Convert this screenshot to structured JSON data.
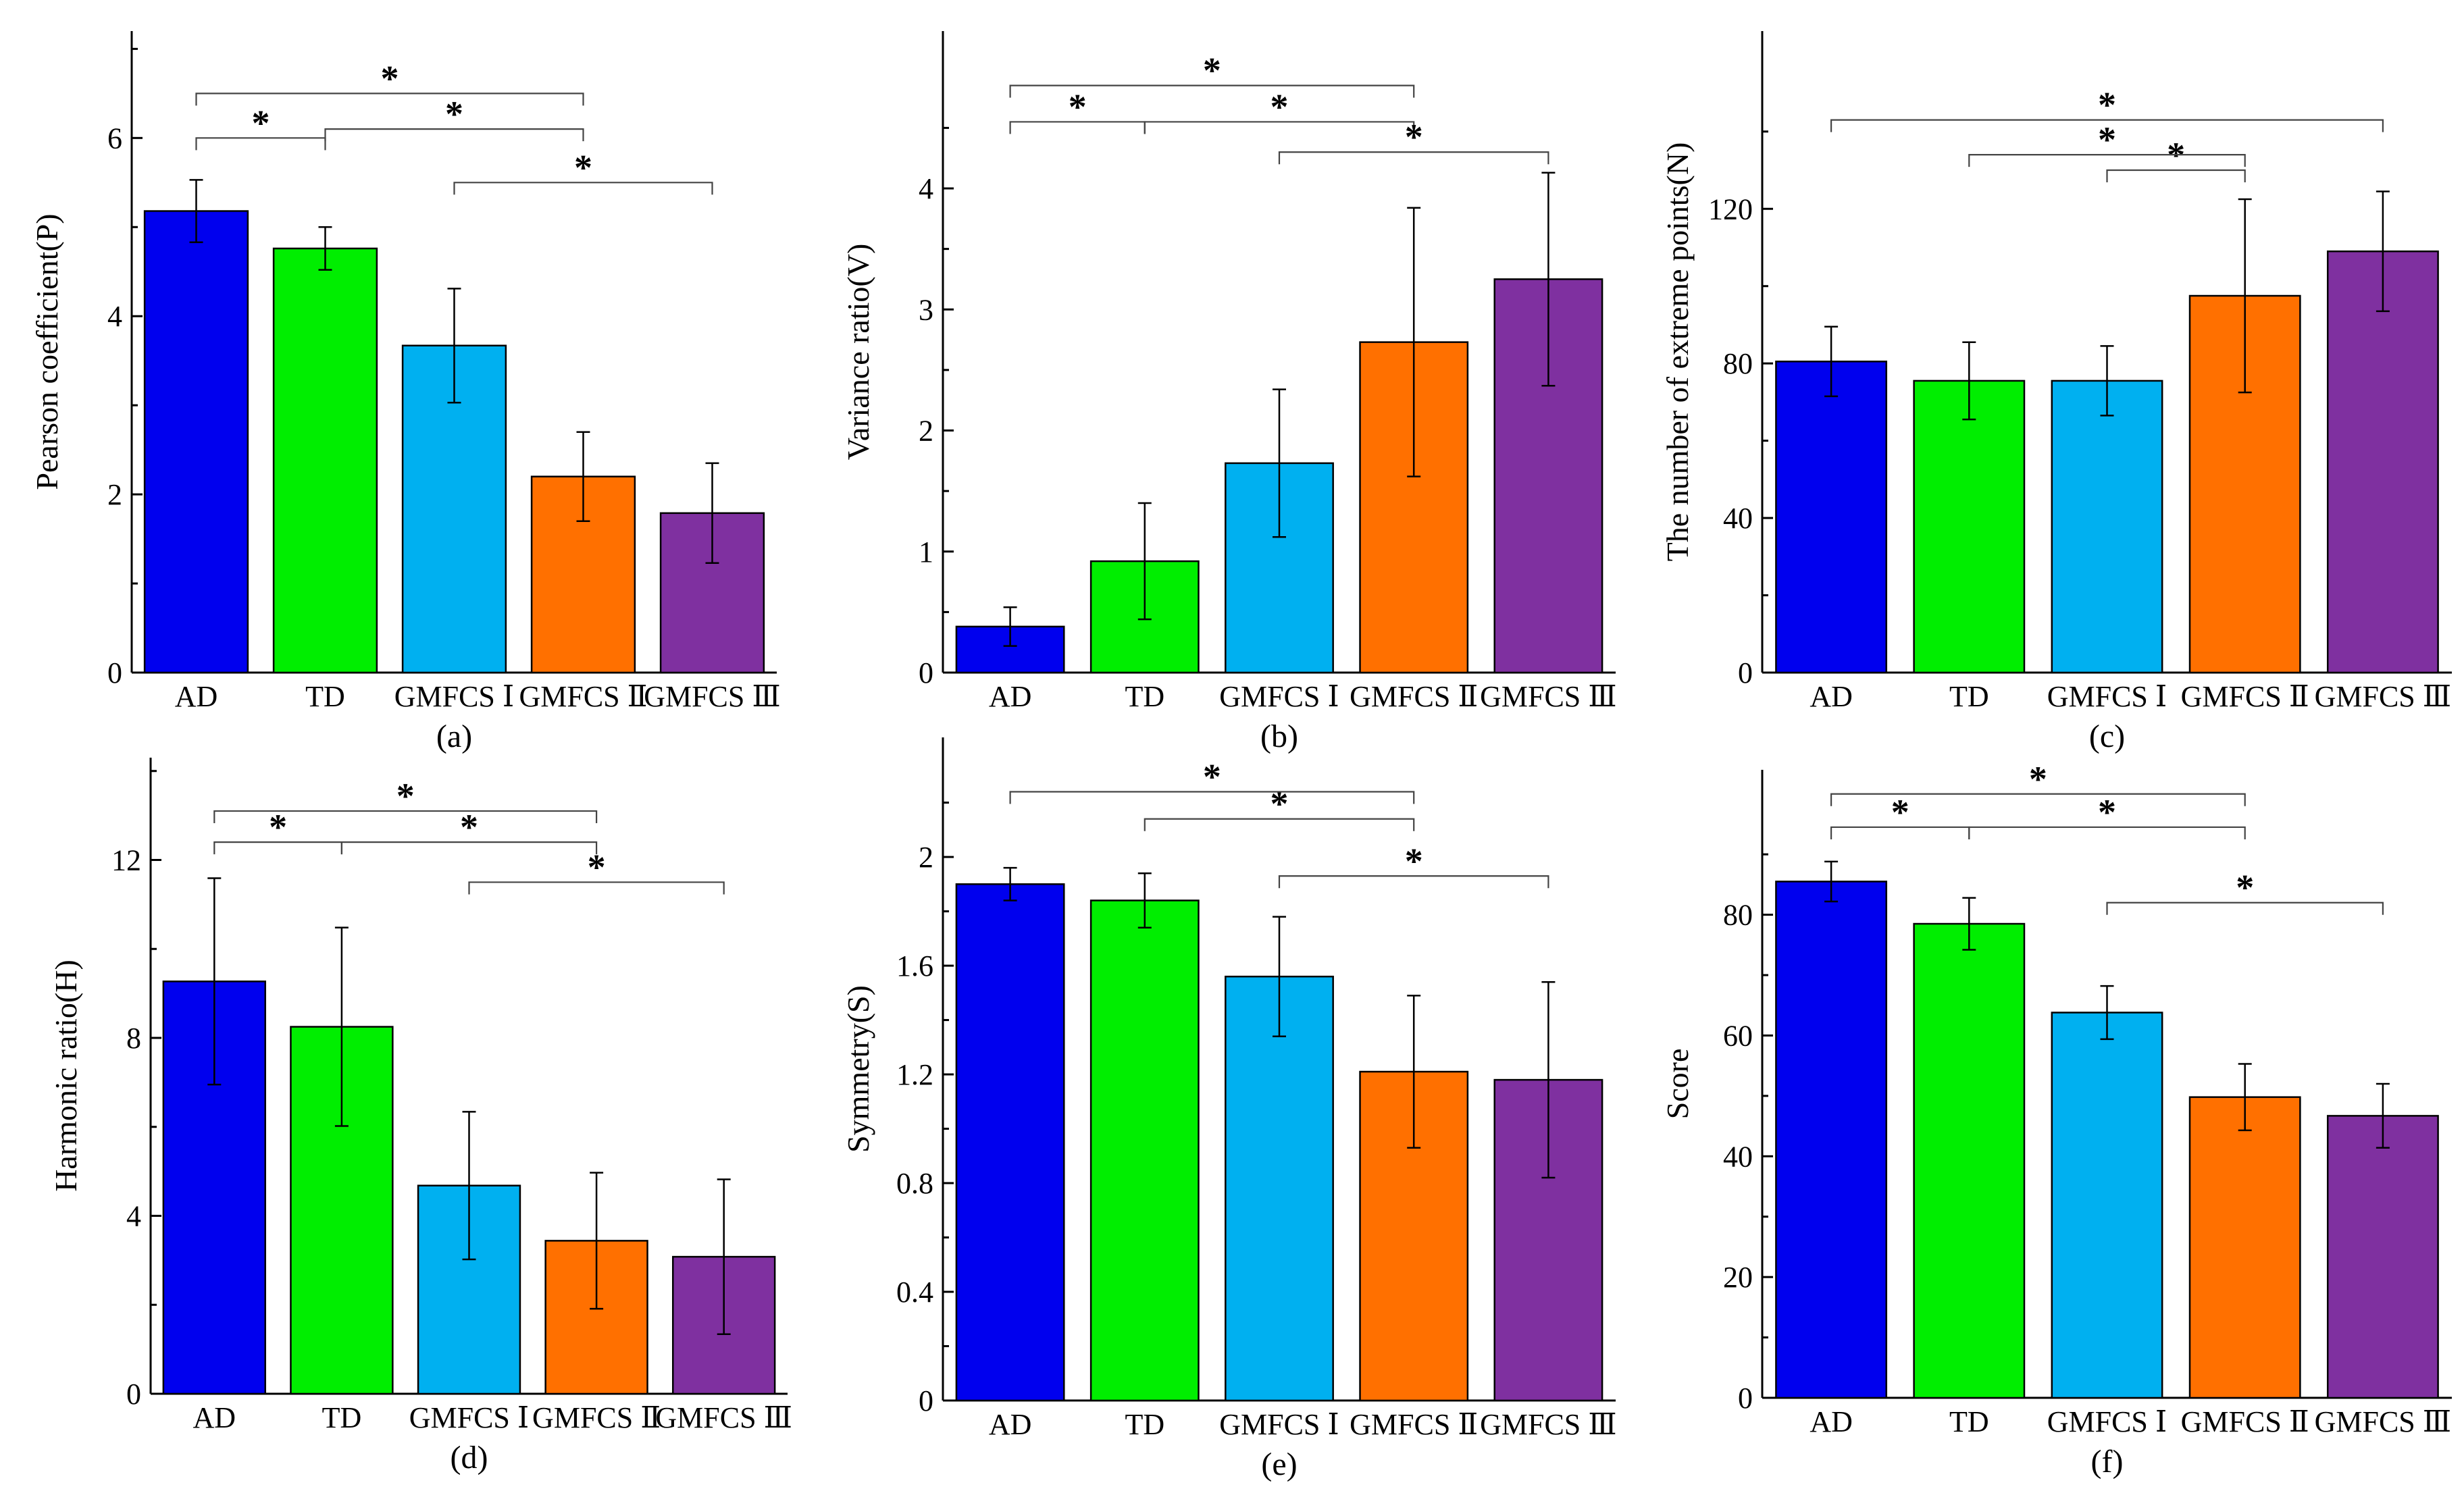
{
  "colors": [
    "#0000ee",
    "#00ee00",
    "#00b0f0",
    "#ff7000",
    "#7f30a0"
  ],
  "chart_data": [
    {
      "type": "bar",
      "panel_label": "(a)",
      "ylabel": "Pearson coefficient(P)",
      "categories": [
        "AD",
        "TD",
        "GMFCS Ⅰ",
        "GMFCS Ⅱ",
        "GMFCS Ⅲ"
      ],
      "values": [
        5.18,
        4.76,
        3.67,
        2.2,
        1.79
      ],
      "errors": [
        0.35,
        0.24,
        0.64,
        0.5,
        0.56
      ],
      "ylim": [
        0,
        7.2
      ],
      "yticks": [
        0,
        2,
        4,
        6
      ],
      "ytick_labels": [
        "0",
        "2",
        "4",
        "6"
      ],
      "significance": [
        {
          "label": "*",
          "from": 0,
          "to": 1,
          "level": 6.0
        },
        {
          "label": "*",
          "from": 1,
          "to": 3,
          "level": 6.1
        },
        {
          "label": "*",
          "from": 0,
          "to": 3,
          "level": 6.5
        },
        {
          "label": "*",
          "from": 2,
          "to": 4,
          "level": 5.5
        }
      ]
    },
    {
      "type": "bar",
      "panel_label": "(b)",
      "ylabel": "Variance ratio(V)",
      "categories": [
        "AD",
        "TD",
        "GMFCS Ⅰ",
        "GMFCS Ⅱ",
        "GMFCS Ⅲ"
      ],
      "values": [
        0.38,
        0.92,
        1.73,
        2.73,
        3.25
      ],
      "errors": [
        0.16,
        0.48,
        0.61,
        1.11,
        0.88
      ],
      "ylim": [
        0,
        5.3
      ],
      "yticks": [
        0,
        1,
        2,
        3,
        4
      ],
      "ytick_labels": [
        "0",
        "1",
        "2",
        "3",
        "4"
      ],
      "significance": [
        {
          "label": "*",
          "from": 0,
          "to": 1,
          "level": 4.55
        },
        {
          "label": "*",
          "from": 1,
          "to": 3,
          "level": 4.55
        },
        {
          "label": "*",
          "from": 0,
          "to": 3,
          "level": 4.85
        },
        {
          "label": "*",
          "from": 2,
          "to": 4,
          "level": 4.3
        }
      ]
    },
    {
      "type": "bar",
      "panel_label": "(c)",
      "ylabel": "The number of extreme points(N)",
      "categories": [
        "AD",
        "TD",
        "GMFCS Ⅰ",
        "GMFCS Ⅱ",
        "GMFCS Ⅲ"
      ],
      "values": [
        80.5,
        75.5,
        75.5,
        97.5,
        109.0
      ],
      "errors": [
        9.0,
        10.0,
        9.0,
        25.0,
        15.5
      ],
      "ylim": [
        0,
        166
      ],
      "yticks": [
        0,
        40,
        80,
        120
      ],
      "ytick_labels": [
        "0",
        "40",
        "80",
        "120"
      ],
      "significance": [
        {
          "label": "*",
          "from": 2,
          "to": 3,
          "level": 130
        },
        {
          "label": "*",
          "from": 1,
          "to": 3,
          "level": 134
        },
        {
          "label": "*",
          "from": 0,
          "to": 4,
          "level": 143
        }
      ]
    },
    {
      "type": "bar",
      "panel_label": "(d)",
      "ylabel": "Harmonic ratio(H)",
      "categories": [
        "AD",
        "TD",
        "GMFCS Ⅰ",
        "GMFCS Ⅱ",
        "GMFCS Ⅲ"
      ],
      "values": [
        9.27,
        8.25,
        4.68,
        3.44,
        3.08
      ],
      "errors": [
        2.32,
        2.23,
        1.66,
        1.53,
        1.74
      ],
      "ylim": [
        0,
        14.3
      ],
      "yticks": [
        0,
        4,
        8,
        12
      ],
      "ytick_labels": [
        "0",
        "4",
        "8",
        "12"
      ],
      "significance": [
        {
          "label": "*",
          "from": 0,
          "to": 1,
          "level": 12.4
        },
        {
          "label": "*",
          "from": 1,
          "to": 3,
          "level": 12.4
        },
        {
          "label": "*",
          "from": 0,
          "to": 3,
          "level": 13.1
        },
        {
          "label": "*",
          "from": 2,
          "to": 4,
          "level": 11.5
        }
      ]
    },
    {
      "type": "bar",
      "panel_label": "(e)",
      "ylabel": "Symmetry(S)",
      "categories": [
        "AD",
        "TD",
        "GMFCS Ⅰ",
        "GMFCS Ⅱ",
        "GMFCS Ⅲ"
      ],
      "values": [
        1.9,
        1.84,
        1.56,
        1.21,
        1.18
      ],
      "errors": [
        0.06,
        0.1,
        0.22,
        0.28,
        0.36
      ],
      "ylim": [
        0,
        2.44
      ],
      "yticks": [
        0,
        0.4,
        0.8,
        1.2,
        1.6,
        2.0
      ],
      "ytick_labels": [
        "0",
        "0.4",
        "0.8",
        "1.2",
        "1.6",
        "2"
      ],
      "significance": [
        {
          "label": "*",
          "from": 1,
          "to": 3,
          "level": 2.14
        },
        {
          "label": "*",
          "from": 0,
          "to": 3,
          "level": 2.24
        },
        {
          "label": "*",
          "from": 2,
          "to": 4,
          "level": 1.93
        }
      ]
    },
    {
      "type": "bar",
      "panel_label": "(f)",
      "ylabel": "Score",
      "categories": [
        "AD",
        "TD",
        "GMFCS Ⅰ",
        "GMFCS Ⅱ",
        "GMFCS Ⅲ"
      ],
      "values": [
        85.5,
        78.5,
        63.8,
        49.8,
        46.7
      ],
      "errors": [
        3.3,
        4.3,
        4.4,
        5.5,
        5.3
      ],
      "ylim": [
        0,
        104
      ],
      "yticks": [
        0,
        20,
        40,
        60,
        80
      ],
      "ytick_labels": [
        "0",
        "20",
        "40",
        "60",
        "80"
      ],
      "significance": [
        {
          "label": "*",
          "from": 0,
          "to": 1,
          "level": 94.5
        },
        {
          "label": "*",
          "from": 1,
          "to": 3,
          "level": 94.5
        },
        {
          "label": "*",
          "from": 0,
          "to": 3,
          "level": 100
        },
        {
          "label": "*",
          "from": 2,
          "to": 4,
          "level": 82
        }
      ]
    }
  ]
}
